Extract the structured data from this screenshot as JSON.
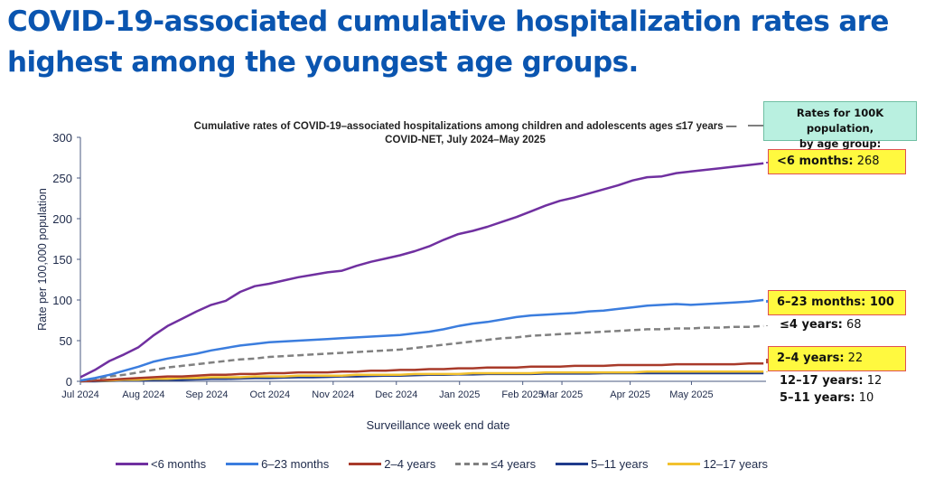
{
  "headline": {
    "line1": "COVID-19-associated cumulative hospitalization rates are",
    "line2": "highest among the youngest age groups."
  },
  "info_box": {
    "line1": "Rates for 100K population,",
    "line2": "by age group:"
  },
  "callouts": [
    {
      "label": "<6 months:",
      "value": " 268",
      "highlight": true,
      "value_bold": false
    },
    {
      "label": "6–23 months: 100",
      "value": "",
      "highlight": true,
      "value_bold": true
    },
    {
      "label": "≤4 years:",
      "value": " 68",
      "highlight": false,
      "value_bold": false
    },
    {
      "label": "2–4 years:",
      "value": " 22",
      "highlight": true,
      "value_bold": false
    },
    {
      "label": "12–17 years:",
      "value": " 12",
      "highlight": false,
      "value_bold": false
    },
    {
      "label": "5–11 years:",
      "value": " 10",
      "highlight": false,
      "value_bold": false
    }
  ],
  "chart_data": {
    "type": "line",
    "title": "Cumulative rates of COVID-19–associated hospitalizations among children and adolescents ages ≤17 years —",
    "subtitle": "COVID-NET, July 2024–May 2025",
    "xlabel": "Surveillance week end date",
    "ylabel": "Rate per 100,000 population",
    "ylim": [
      0,
      300
    ],
    "yticks": [
      0,
      50,
      100,
      150,
      200,
      250,
      300
    ],
    "x_units": "months since Jul 1, 2024",
    "xlim": [
      0,
      10.85
    ],
    "xticks": [
      {
        "value": 0,
        "label": "Jul 2024"
      },
      {
        "value": 1,
        "label": "Aug 2024"
      },
      {
        "value": 2,
        "label": "Sep 2024"
      },
      {
        "value": 3,
        "label": "Oct 2024"
      },
      {
        "value": 4,
        "label": "Nov 2024"
      },
      {
        "value": 5,
        "label": "Dec 2024"
      },
      {
        "value": 6,
        "label": "Jan 2025"
      },
      {
        "value": 7,
        "label": "Feb 2025"
      },
      {
        "value": 7.62,
        "label": "Mar 2025"
      },
      {
        "value": 8.7,
        "label": "Apr 2025"
      },
      {
        "value": 9.67,
        "label": "May 2025"
      }
    ],
    "grid": false,
    "legend_position": "bottom",
    "x": [
      0,
      0.23,
      0.46,
      0.69,
      0.92,
      1.15,
      1.38,
      1.61,
      1.84,
      2.07,
      2.3,
      2.53,
      2.76,
      2.99,
      3.22,
      3.45,
      3.68,
      3.91,
      4.14,
      4.37,
      4.6,
      4.83,
      5.06,
      5.29,
      5.52,
      5.75,
      5.98,
      6.21,
      6.44,
      6.67,
      6.9,
      7.13,
      7.36,
      7.59,
      7.82,
      8.05,
      8.28,
      8.51,
      8.74,
      8.97,
      9.2,
      9.43,
      9.66,
      9.89,
      10.12,
      10.35,
      10.58,
      10.81
    ],
    "series": [
      {
        "name": "<6 months",
        "color": "#7030a0",
        "dashed": false,
        "values": [
          5,
          14,
          25,
          33,
          42,
          56,
          68,
          77,
          86,
          94,
          99,
          110,
          117,
          120,
          124,
          128,
          131,
          134,
          136,
          142,
          147,
          151,
          155,
          160,
          166,
          174,
          181,
          185,
          190,
          196,
          202,
          209,
          216,
          222,
          226,
          231,
          236,
          241,
          247,
          251,
          252,
          256,
          258,
          260,
          262,
          264,
          266,
          268
        ]
      },
      {
        "name": "6–23 months",
        "color": "#3b7dde",
        "dashed": false,
        "values": [
          1,
          4,
          8,
          13,
          18,
          24,
          28,
          31,
          34,
          38,
          41,
          44,
          46,
          48,
          49,
          50,
          51,
          52,
          53,
          54,
          55,
          56,
          57,
          59,
          61,
          64,
          68,
          71,
          73,
          76,
          79,
          81,
          82,
          83,
          84,
          86,
          87,
          89,
          91,
          93,
          94,
          95,
          94,
          95,
          96,
          97,
          98,
          100
        ]
      },
      {
        "name": "2–4 years",
        "color": "#a83a2a",
        "dashed": false,
        "values": [
          0,
          1,
          2,
          3,
          4,
          5,
          6,
          6,
          7,
          8,
          8,
          9,
          9,
          10,
          10,
          11,
          11,
          11,
          12,
          12,
          13,
          13,
          14,
          14,
          15,
          15,
          16,
          16,
          17,
          17,
          17,
          18,
          18,
          18,
          19,
          19,
          19,
          20,
          20,
          20,
          20,
          21,
          21,
          21,
          21,
          21,
          22,
          22
        ]
      },
      {
        "name": "≤4 years",
        "color": "#808080",
        "dashed": true,
        "values": [
          1,
          3,
          6,
          8,
          11,
          14,
          17,
          19,
          21,
          23,
          25,
          27,
          28,
          30,
          31,
          32,
          33,
          34,
          35,
          36,
          37,
          38,
          39,
          41,
          43,
          45,
          47,
          49,
          51,
          53,
          54,
          56,
          57,
          58,
          59,
          60,
          61,
          62,
          63,
          64,
          64,
          65,
          65,
          66,
          66,
          67,
          67,
          68
        ]
      },
      {
        "name": "5–11 years",
        "color": "#1f3b8c",
        "dashed": false,
        "values": [
          0,
          0,
          0.5,
          1,
          1,
          1.5,
          2,
          2,
          2.5,
          3,
          3,
          3.5,
          4,
          4,
          4.5,
          5,
          5,
          5.5,
          6,
          6,
          6.5,
          7,
          7,
          7.5,
          8,
          8,
          8.5,
          8.5,
          9,
          9,
          9,
          9,
          9.5,
          9.5,
          9.5,
          9.5,
          10,
          10,
          10,
          10,
          10,
          10,
          10,
          10,
          10,
          10,
          10,
          10
        ]
      },
      {
        "name": "12–17 years",
        "color": "#f2c12e",
        "dashed": false,
        "values": [
          0,
          1,
          1,
          2,
          2,
          3,
          3,
          4,
          4,
          5,
          5,
          5,
          6,
          6,
          6,
          7,
          7,
          7,
          7,
          8,
          8,
          8,
          8,
          9,
          9,
          9,
          9,
          10,
          10,
          10,
          10,
          10,
          11,
          11,
          11,
          11,
          11,
          11,
          11,
          12,
          12,
          12,
          12,
          12,
          12,
          12,
          12,
          12
        ]
      }
    ]
  }
}
